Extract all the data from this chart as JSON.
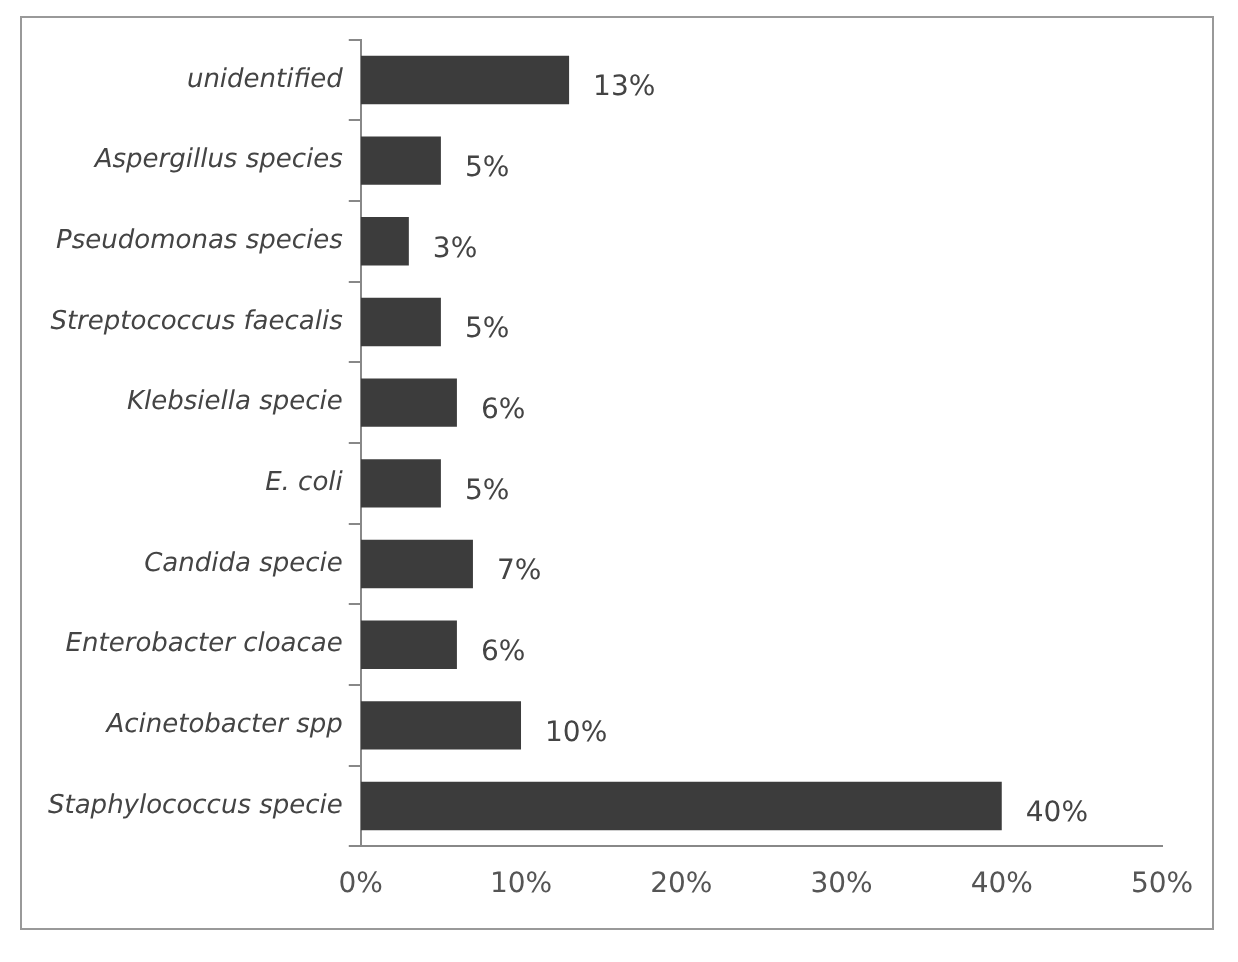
{
  "chart_data": {
    "type": "bar",
    "orientation": "horizontal",
    "categories": [
      "unidentified",
      "Aspergillus species",
      "Pseudomonas species",
      "Streptococcus faecalis",
      "Klebsiella specie",
      "E. coli",
      "Candida specie",
      "Enterobacter cloacae",
      "Acinetobacter spp",
      "Staphylococcus specie"
    ],
    "values": [
      13,
      5,
      3,
      5,
      6,
      5,
      7,
      6,
      10,
      40
    ],
    "value_labels": [
      "13%",
      "5%",
      "3%",
      "5%",
      "6%",
      "5%",
      "7%",
      "6%",
      "10%",
      "40%"
    ],
    "color": "#3c3c3c",
    "xlim": [
      0,
      50
    ],
    "xticks": [
      {
        "value": 0,
        "label": "0%"
      },
      {
        "value": 10,
        "label": "10%"
      },
      {
        "value": 20,
        "label": "20%"
      },
      {
        "value": 30,
        "label": "30%"
      },
      {
        "value": 40,
        "label": "40%"
      },
      {
        "value": 50,
        "label": "50%"
      }
    ],
    "grid": false,
    "legend": false
  }
}
